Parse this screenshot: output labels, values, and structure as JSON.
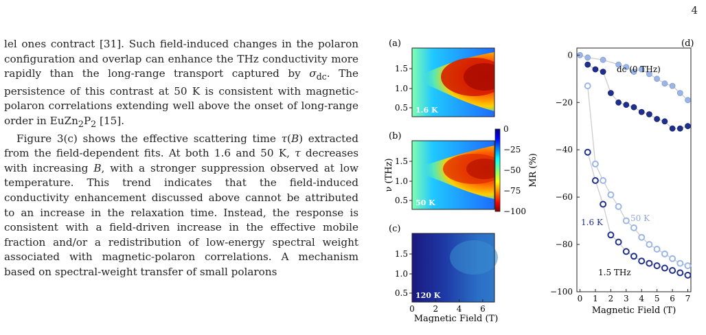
{
  "page_number": "4",
  "paragraphs": [
    {
      "indent": false,
      "text": "lel ones contract [31]. Such field-induced changes in the polaron configuration and overlap can enhance the THz conductivity more rapidly than the long-range transport captured by σ_dc. The persistence of this contrast at 50 K is consistent with magnetic-polaron correlations extending well above the onset of long-range order in EuZn₂P₂ [15]."
    },
    {
      "indent": true,
      "text": "Figure 3(c) shows the effective scattering time τ(B) extracted from the field-dependent fits. At both 1.6 and 50 K, τ decreases with increasing B, with a stronger suppression observed at low temperature. This trend indicates that the field-induced conductivity enhancement discussed above cannot be attributed to an increase in the relaxation time. Instead, the response is consistent with a field-driven increase in the effective mobile fraction and/or a redistribution of low-energy spectral weight associated with magnetic-polaron correlations. A mechanism based on spectral-weight transfer of small polarons"
    }
  ],
  "figure": {
    "panel_labels": [
      "(a)",
      "(b)",
      "(c)",
      "(d)"
    ],
    "heatmap_temps": [
      "1.6 K",
      "50 K",
      "120 K"
    ],
    "y_ticks": [
      "1.5",
      "1.0",
      "0.5"
    ],
    "x_ticks": [
      "0",
      "2",
      "4",
      "6"
    ],
    "xlabel": "Magnetic Field (T)",
    "ylabel": "ν (THz)",
    "colorbar_ticks": [
      "0",
      "−25",
      "−50",
      "−75",
      "−100"
    ],
    "mr_ylabel": "MR (%)",
    "mr_xlabel": "Magnetic Field (T)",
    "mr_y_ticks": [
      "0",
      "−20",
      "−40",
      "−60",
      "−80",
      "−100"
    ],
    "mr_x_ticks": [
      "0",
      "1",
      "2",
      "3",
      "4",
      "5",
      "6",
      "7"
    ],
    "annotations": {
      "dc": "dc (0 THz)",
      "t50": "50 K",
      "t16": "1.6 K",
      "thz": "1.5 THz"
    },
    "colors": {
      "dark": "#1f2f8c",
      "light": "#9bb6e6",
      "fit": "#cfcfcf"
    }
  },
  "chart_data": [
    {
      "type": "heatmap",
      "panel": "(a)",
      "annotation": "1.6 K",
      "xlim": [
        0,
        7
      ],
      "ylim": [
        0.25,
        1.95
      ],
      "colorbar_range": [
        -100,
        0
      ]
    },
    {
      "type": "heatmap",
      "panel": "(b)",
      "annotation": "50 K",
      "xlim": [
        0,
        7
      ],
      "ylim": [
        0.25,
        1.95
      ],
      "colorbar_range": [
        -100,
        0
      ]
    },
    {
      "type": "heatmap",
      "panel": "(c)",
      "annotation": "120 K",
      "xlim": [
        0,
        7
      ],
      "ylim": [
        0.25,
        1.95
      ],
      "colorbar_range": [
        -100,
        0
      ]
    },
    {
      "type": "scatter",
      "panel": "(d)",
      "xlabel": "Magnetic Field (T)",
      "ylabel": "MR (%)",
      "xlim": [
        -0.2,
        7.2
      ],
      "ylim": [
        -100,
        3
      ],
      "series": [
        {
          "group": "dc",
          "style": "filled-light",
          "x": [
            0,
            0.5,
            1.5,
            2.5,
            3,
            3.5,
            4,
            4.5,
            5,
            5.5,
            6,
            6.5,
            7
          ],
          "y": [
            0,
            -1,
            -2,
            -4,
            -5,
            -7,
            -6,
            -8,
            -10,
            -12,
            -13,
            -16,
            -19
          ]
        },
        {
          "group": "dc",
          "style": "filled-dark",
          "x": [
            0.5,
            1,
            1.5,
            2,
            2.5,
            3,
            3.5,
            4,
            4.5,
            5,
            5.5,
            6,
            6.5,
            7
          ],
          "y": [
            -4,
            -6,
            -7,
            -16,
            -20,
            -21,
            -22,
            -24,
            -25,
            -27,
            -28,
            -31,
            -31,
            -30
          ]
        },
        {
          "group": "1.5 THz",
          "style": "open-light",
          "x": [
            0.5,
            1,
            1.5,
            2,
            2.5,
            3,
            3.5,
            4,
            4.5,
            5,
            5.5,
            6,
            6.5,
            7
          ],
          "y": [
            -13,
            -46,
            -53,
            -59,
            -64,
            -70,
            -73,
            -77,
            -80,
            -82,
            -84,
            -86,
            -88,
            -89
          ]
        },
        {
          "group": "1.5 THz",
          "style": "open-dark",
          "x": [
            0.5,
            1,
            1.5,
            2,
            2.5,
            3,
            3.5,
            4,
            4.5,
            5,
            5.5,
            6,
            6.5,
            7
          ],
          "y": [
            -41,
            -53,
            -63,
            -76,
            -79,
            -83,
            -85,
            -87,
            -88,
            -89,
            -90,
            -91,
            -92,
            -93
          ]
        }
      ]
    }
  ]
}
